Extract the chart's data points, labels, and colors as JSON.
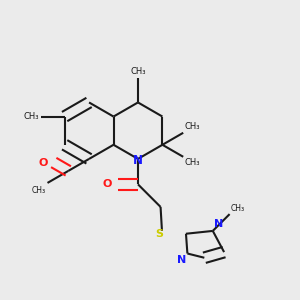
{
  "bg_color": "#ebebeb",
  "bond_color": "#1a1a1a",
  "n_color": "#1919ff",
  "o_color": "#ff1919",
  "s_color": "#cccc00",
  "linewidth": 1.5,
  "double_sep": 0.018,
  "figsize": [
    3.0,
    3.0
  ],
  "dpi": 100
}
